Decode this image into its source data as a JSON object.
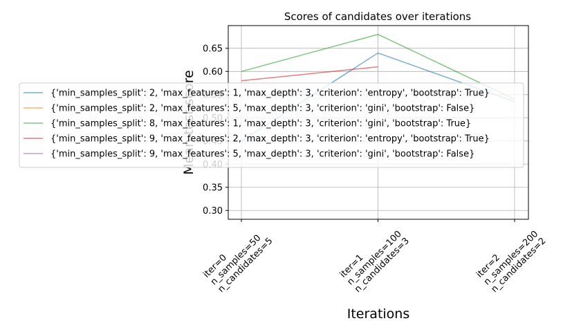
{
  "chart_data": {
    "type": "line",
    "title": "Scores of candidates over iterations",
    "x_label": "Iterations",
    "y_label": "Mean test score",
    "categories": [
      [
        "iter=0",
        "n_samples=50",
        "n_candidates=5"
      ],
      [
        "iter=1",
        "n_samples=100",
        "n_candidates=3"
      ],
      [
        "iter=2",
        "n_samples=200",
        "n_candidates=2"
      ]
    ],
    "series": [
      {
        "name": "{'min_samples_split': 2, 'max_features': 1, 'max_depth': 3, 'criterion': 'entropy', 'bootstrap': True}",
        "color": "#1f77b4",
        "values": [
          0.45,
          0.64,
          0.535
        ]
      },
      {
        "name": "{'min_samples_split': 2, 'max_features': 5, 'max_depth': 3, 'criterion': 'gini', 'bootstrap': False}",
        "color": "#ff7f0e",
        "values": [
          0.5,
          null,
          null
        ]
      },
      {
        "name": "{'min_samples_split': 8, 'max_features': 1, 'max_depth': 3, 'criterion': 'gini', 'bootstrap': True}",
        "color": "#2ca02c",
        "values": [
          0.6,
          0.68,
          0.54
        ]
      },
      {
        "name": "{'min_samples_split': 9, 'max_features': 2, 'max_depth': 3, 'criterion': 'entropy', 'bootstrap': True}",
        "color": "#d62728",
        "values": [
          0.58,
          0.61,
          null
        ]
      },
      {
        "name": "{'min_samples_split': 9, 'max_features': 5, 'max_depth': 3, 'criterion': 'gini', 'bootstrap': False}",
        "color": "#9467bd",
        "values": [
          0.5,
          null,
          null
        ]
      }
    ],
    "ylim": [
      0.281,
      0.699
    ],
    "yticks": [
      {
        "value": 0.3,
        "label": "0.30"
      },
      {
        "value": 0.35,
        "label": "0.35"
      },
      {
        "value": 0.4,
        "label": "0.40"
      },
      {
        "value": 0.45,
        "label": "0.45"
      },
      {
        "value": 0.5,
        "label": "0.50"
      },
      {
        "value": 0.55,
        "label": "0.55"
      },
      {
        "value": 0.6,
        "label": "0.60"
      },
      {
        "value": 0.65,
        "label": "0.65"
      }
    ],
    "grid": true,
    "line_opacity": 0.6
  }
}
